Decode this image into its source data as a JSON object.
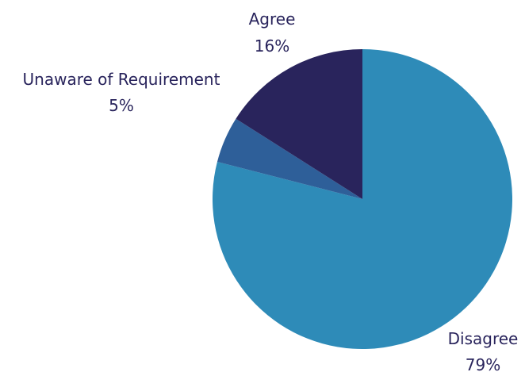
{
  "chart_data": {
    "type": "pie",
    "start_angle_deg": 0,
    "direction": "clockwise",
    "slices": [
      {
        "label": "Disagree",
        "value": 79,
        "value_label": "79%",
        "color": "#2e8bb8"
      },
      {
        "label": "Unaware of Requirement",
        "value": 5,
        "value_label": "5%",
        "color": "#2e5f99"
      },
      {
        "label": "Agree",
        "value": 16,
        "value_label": "16%",
        "color": "#29245c"
      }
    ],
    "label_color": "#29245c",
    "legend": "none"
  }
}
